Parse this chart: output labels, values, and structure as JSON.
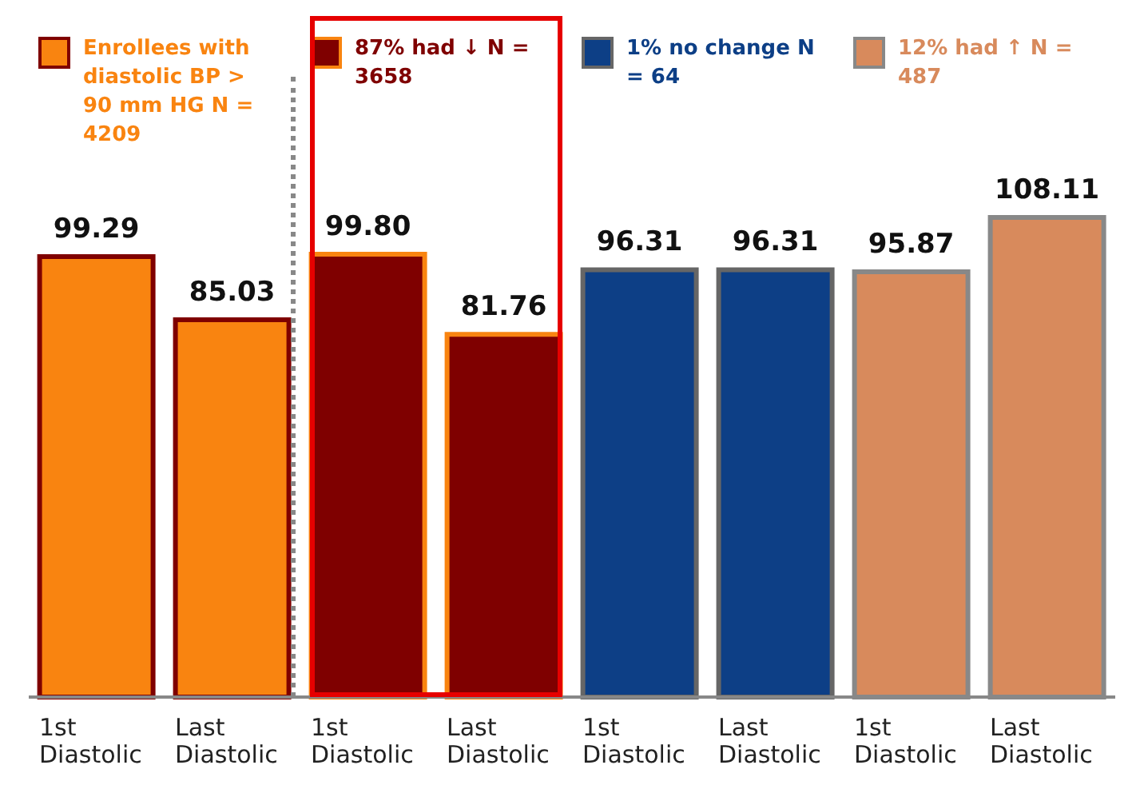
{
  "chart_data": {
    "type": "bar",
    "categories": [
      "1st Diastolic",
      "Last Diastolic",
      "1st Diastolic",
      "Last Diastolic",
      "1st Diastolic",
      "Last Diastolic",
      "1st Diastolic",
      "Last Diastolic"
    ],
    "series": [
      {
        "name": "Enrollees with diastolic BP > 90 mm HG N = 4209",
        "color": "#f98410",
        "values": [
          99.29,
          85.03,
          null,
          null,
          null,
          null,
          null,
          null
        ]
      },
      {
        "name": "87% had ↓ N = 3658",
        "color": "#7f0000",
        "values": [
          null,
          null,
          99.8,
          81.76,
          null,
          null,
          null,
          null
        ],
        "value_labels": [
          null,
          null,
          "99.80",
          "81.76",
          null,
          null,
          null,
          null
        ]
      },
      {
        "name": "1% no change N = 64",
        "color": "#0d3f86",
        "values": [
          null,
          null,
          null,
          null,
          96.31,
          96.31,
          null,
          null
        ]
      },
      {
        "name": "12% had ↑ N = 487",
        "color": "#d88a5c",
        "values": [
          null,
          null,
          null,
          null,
          null,
          null,
          95.87,
          108.11
        ]
      }
    ],
    "data_labels": true,
    "legend": "top"
  }
}
